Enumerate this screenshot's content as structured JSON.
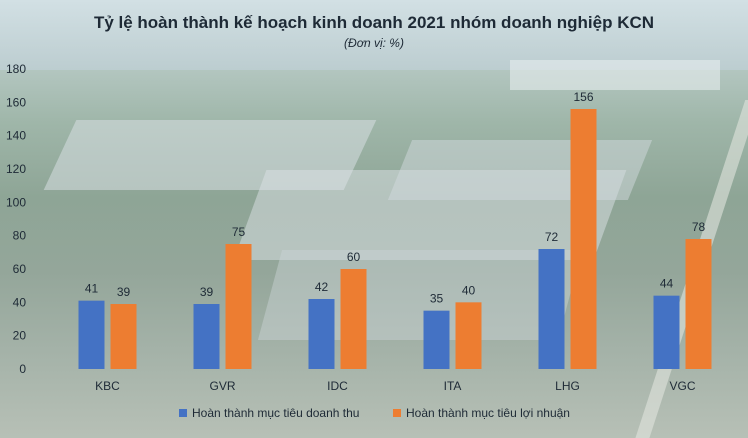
{
  "chart_data": {
    "type": "bar",
    "title": "Tỷ lệ hoàn thành kế hoạch kinh doanh 2021 nhóm doanh nghiệp KCN",
    "subtitle": "(Đơn vị: %)",
    "categories": [
      "KBC",
      "GVR",
      "IDC",
      "ITA",
      "LHG",
      "VGC"
    ],
    "series": [
      {
        "name": "Hoàn thành mục tiêu doanh thu",
        "values": [
          41,
          39,
          42,
          35,
          72,
          44
        ],
        "color": "#4472C4"
      },
      {
        "name": "Hoàn thành mục tiêu lợi nhuận",
        "values": [
          39,
          75,
          60,
          40,
          156,
          78
        ],
        "color": "#ED7D31"
      }
    ],
    "yticks": [
      "0",
      "20",
      "40",
      "60",
      "80",
      "100",
      "120",
      "140",
      "160",
      "180"
    ],
    "ylim": [
      0,
      180
    ],
    "grid": false,
    "legend_position": "bottom"
  }
}
